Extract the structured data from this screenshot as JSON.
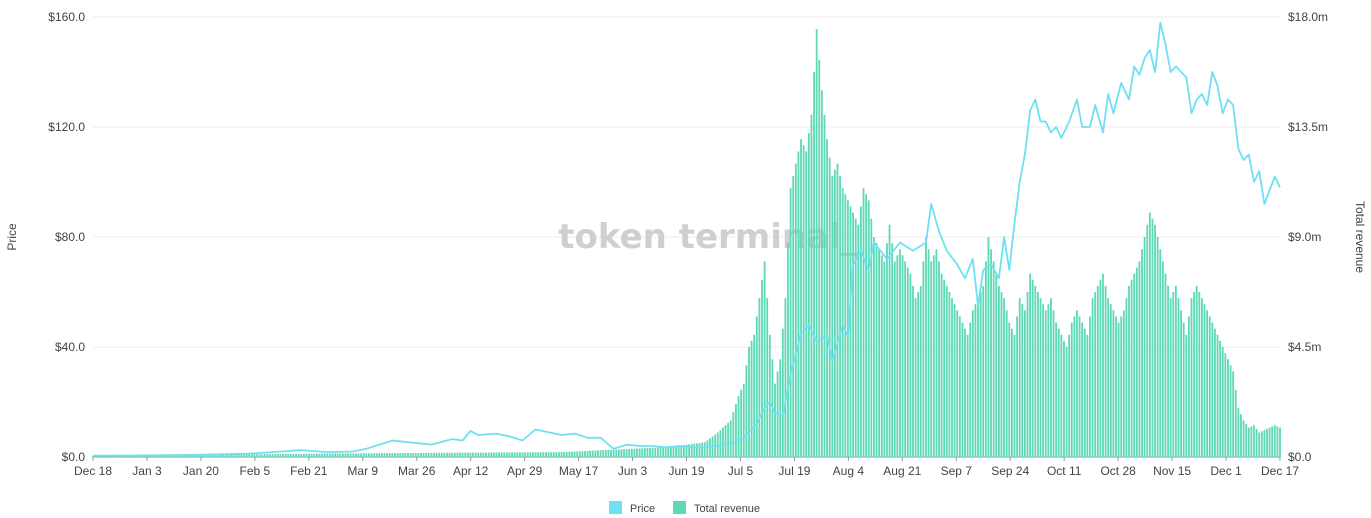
{
  "chart_data": {
    "type": "bar+line",
    "watermark": "token terminal_",
    "x_ticks": [
      "Dec 18",
      "Jan 3",
      "Jan 20",
      "Feb 5",
      "Feb 21",
      "Mar 9",
      "Mar 26",
      "Apr 12",
      "Apr 29",
      "May 17",
      "Jun 3",
      "Jun 19",
      "Jul 5",
      "Jul 19",
      "Aug 4",
      "Aug 21",
      "Sep 7",
      "Sep 24",
      "Oct 11",
      "Oct 28",
      "Nov 15",
      "Dec 1",
      "Dec 17"
    ],
    "y_left": {
      "label": "Price",
      "ticks": [
        "$0.0",
        "$40.0",
        "$80.0",
        "$120.0",
        "$160.0"
      ],
      "range": [
        0,
        160
      ]
    },
    "y_right": {
      "label": "Total revenue",
      "ticks": [
        "$0.0",
        "$4.5m",
        "$9.0m",
        "$13.5m",
        "$18.0m"
      ],
      "range": [
        0,
        18
      ]
    },
    "series": [
      {
        "name": "Price",
        "type": "line",
        "axis": "left",
        "color": "#6fe0f2",
        "points": [
          [
            0,
            0.5
          ],
          [
            20,
            0.6
          ],
          [
            40,
            0.8
          ],
          [
            60,
            1.2
          ],
          [
            80,
            2.5
          ],
          [
            90,
            1.8
          ],
          [
            100,
            2.0
          ],
          [
            105,
            3
          ],
          [
            115,
            6
          ],
          [
            125,
            5
          ],
          [
            130,
            4.5
          ],
          [
            138,
            6.5
          ],
          [
            142,
            6
          ],
          [
            145,
            9.5
          ],
          [
            148,
            8
          ],
          [
            155,
            8.5
          ],
          [
            160,
            7.5
          ],
          [
            165,
            6
          ],
          [
            170,
            10
          ],
          [
            175,
            9
          ],
          [
            180,
            8
          ],
          [
            185,
            8.5
          ],
          [
            190,
            7
          ],
          [
            195,
            7
          ],
          [
            200,
            3
          ],
          [
            205,
            4.5
          ],
          [
            210,
            4
          ],
          [
            215,
            4
          ],
          [
            220,
            3.5
          ],
          [
            225,
            4
          ],
          [
            230,
            3.5
          ],
          [
            235,
            3.5
          ],
          [
            240,
            4
          ],
          [
            245,
            5
          ],
          [
            250,
            7
          ],
          [
            255,
            12
          ],
          [
            258,
            18
          ],
          [
            260,
            20
          ],
          [
            262,
            16
          ],
          [
            265,
            15
          ],
          [
            268,
            30
          ],
          [
            272,
            45
          ],
          [
            275,
            48
          ],
          [
            278,
            42
          ],
          [
            282,
            44
          ],
          [
            284,
            35
          ],
          [
            288,
            48
          ],
          [
            290,
            44
          ],
          [
            292,
            70
          ],
          [
            295,
            75
          ],
          [
            298,
            68
          ],
          [
            300,
            78
          ],
          [
            305,
            72
          ],
          [
            310,
            78
          ],
          [
            315,
            75
          ],
          [
            320,
            78
          ],
          [
            322,
            92
          ],
          [
            325,
            82
          ],
          [
            328,
            75
          ],
          [
            332,
            70
          ],
          [
            335,
            65
          ],
          [
            338,
            72
          ],
          [
            340,
            55
          ],
          [
            342,
            68
          ],
          [
            345,
            70
          ],
          [
            348,
            65
          ],
          [
            350,
            80
          ],
          [
            352,
            68
          ],
          [
            354,
            85
          ],
          [
            356,
            100
          ],
          [
            358,
            110
          ],
          [
            360,
            126
          ],
          [
            362,
            130
          ],
          [
            364,
            122
          ],
          [
            366,
            122
          ],
          [
            368,
            118
          ],
          [
            370,
            120
          ],
          [
            372,
            116
          ],
          [
            375,
            122
          ],
          [
            378,
            130
          ],
          [
            380,
            120
          ],
          [
            383,
            120
          ],
          [
            385,
            128
          ],
          [
            388,
            118
          ],
          [
            390,
            132
          ],
          [
            392,
            125
          ],
          [
            395,
            136
          ],
          [
            398,
            130
          ],
          [
            400,
            142
          ],
          [
            402,
            139
          ],
          [
            404,
            145
          ],
          [
            406,
            148
          ],
          [
            408,
            140
          ],
          [
            410,
            158
          ],
          [
            412,
            150
          ],
          [
            414,
            140
          ],
          [
            416,
            142
          ],
          [
            418,
            140
          ],
          [
            420,
            138
          ],
          [
            422,
            125
          ],
          [
            424,
            130
          ],
          [
            426,
            132
          ],
          [
            428,
            128
          ],
          [
            430,
            140
          ],
          [
            432,
            135
          ],
          [
            434,
            125
          ],
          [
            436,
            130
          ],
          [
            438,
            128
          ],
          [
            440,
            112
          ],
          [
            442,
            108
          ],
          [
            444,
            110
          ],
          [
            446,
            100
          ],
          [
            448,
            104
          ],
          [
            450,
            92
          ],
          [
            452,
            97
          ],
          [
            454,
            102
          ],
          [
            456,
            98
          ]
        ]
      },
      {
        "name": "Total revenue",
        "type": "bar",
        "axis": "right",
        "color": "#5ed9b6",
        "points": [
          [
            0,
            0.05
          ],
          [
            100,
            0.15
          ],
          [
            180,
            0.2
          ],
          [
            200,
            0.3
          ],
          [
            220,
            0.4
          ],
          [
            235,
            0.6
          ],
          [
            240,
            1.0
          ],
          [
            245,
            1.5
          ],
          [
            248,
            2.5
          ],
          [
            250,
            3.0
          ],
          [
            252,
            4.5
          ],
          [
            254,
            5.0
          ],
          [
            256,
            6.5
          ],
          [
            258,
            8.0
          ],
          [
            260,
            5.0
          ],
          [
            262,
            3.0
          ],
          [
            264,
            4.0
          ],
          [
            266,
            6.5
          ],
          [
            268,
            11.0
          ],
          [
            270,
            12.0
          ],
          [
            272,
            13.0
          ],
          [
            274,
            12.5
          ],
          [
            276,
            14.0
          ],
          [
            278,
            17.5
          ],
          [
            280,
            15.0
          ],
          [
            282,
            13.0
          ],
          [
            284,
            11.5
          ],
          [
            286,
            12.0
          ],
          [
            288,
            11.0
          ],
          [
            290,
            10.5
          ],
          [
            292,
            10.0
          ],
          [
            294,
            9.5
          ],
          [
            296,
            11.0
          ],
          [
            298,
            10.5
          ],
          [
            300,
            9.0
          ],
          [
            302,
            8.5
          ],
          [
            304,
            8.0
          ],
          [
            306,
            9.5
          ],
          [
            308,
            8.0
          ],
          [
            310,
            8.5
          ],
          [
            312,
            8.0
          ],
          [
            314,
            7.5
          ],
          [
            316,
            6.5
          ],
          [
            318,
            7.0
          ],
          [
            320,
            9.0
          ],
          [
            322,
            8.0
          ],
          [
            324,
            8.5
          ],
          [
            326,
            7.5
          ],
          [
            328,
            7.0
          ],
          [
            330,
            6.5
          ],
          [
            332,
            6.0
          ],
          [
            334,
            5.5
          ],
          [
            336,
            5.0
          ],
          [
            338,
            6.0
          ],
          [
            340,
            6.5
          ],
          [
            342,
            7.0
          ],
          [
            344,
            9.0
          ],
          [
            346,
            8.0
          ],
          [
            348,
            7.0
          ],
          [
            350,
            6.5
          ],
          [
            352,
            5.5
          ],
          [
            354,
            5.0
          ],
          [
            356,
            6.5
          ],
          [
            358,
            6.0
          ],
          [
            360,
            7.5
          ],
          [
            362,
            7.0
          ],
          [
            364,
            6.5
          ],
          [
            366,
            6.0
          ],
          [
            368,
            6.5
          ],
          [
            370,
            5.5
          ],
          [
            372,
            5.0
          ],
          [
            374,
            4.5
          ],
          [
            376,
            5.5
          ],
          [
            378,
            6.0
          ],
          [
            380,
            5.5
          ],
          [
            382,
            5.0
          ],
          [
            384,
            6.5
          ],
          [
            386,
            7.0
          ],
          [
            388,
            7.5
          ],
          [
            390,
            6.5
          ],
          [
            392,
            6.0
          ],
          [
            394,
            5.5
          ],
          [
            396,
            6.0
          ],
          [
            398,
            7.0
          ],
          [
            400,
            7.5
          ],
          [
            402,
            8.0
          ],
          [
            404,
            9.0
          ],
          [
            406,
            10.0
          ],
          [
            408,
            9.5
          ],
          [
            410,
            8.5
          ],
          [
            412,
            7.5
          ],
          [
            414,
            6.5
          ],
          [
            416,
            7.0
          ],
          [
            418,
            6.0
          ],
          [
            420,
            5.0
          ],
          [
            422,
            6.5
          ],
          [
            424,
            7.0
          ],
          [
            426,
            6.5
          ],
          [
            428,
            6.0
          ],
          [
            430,
            5.5
          ],
          [
            432,
            5.0
          ],
          [
            434,
            4.5
          ],
          [
            436,
            4.0
          ],
          [
            438,
            3.5
          ],
          [
            440,
            2.0
          ],
          [
            442,
            1.5
          ],
          [
            444,
            1.2
          ],
          [
            446,
            1.3
          ],
          [
            448,
            1.0
          ],
          [
            450,
            1.1
          ],
          [
            452,
            1.2
          ],
          [
            454,
            1.3
          ],
          [
            456,
            1.2
          ]
        ]
      }
    ],
    "legend": [
      {
        "label": "Price",
        "color": "#6fe0f2"
      },
      {
        "label": "Total revenue",
        "color": "#5ed9b6"
      }
    ]
  }
}
